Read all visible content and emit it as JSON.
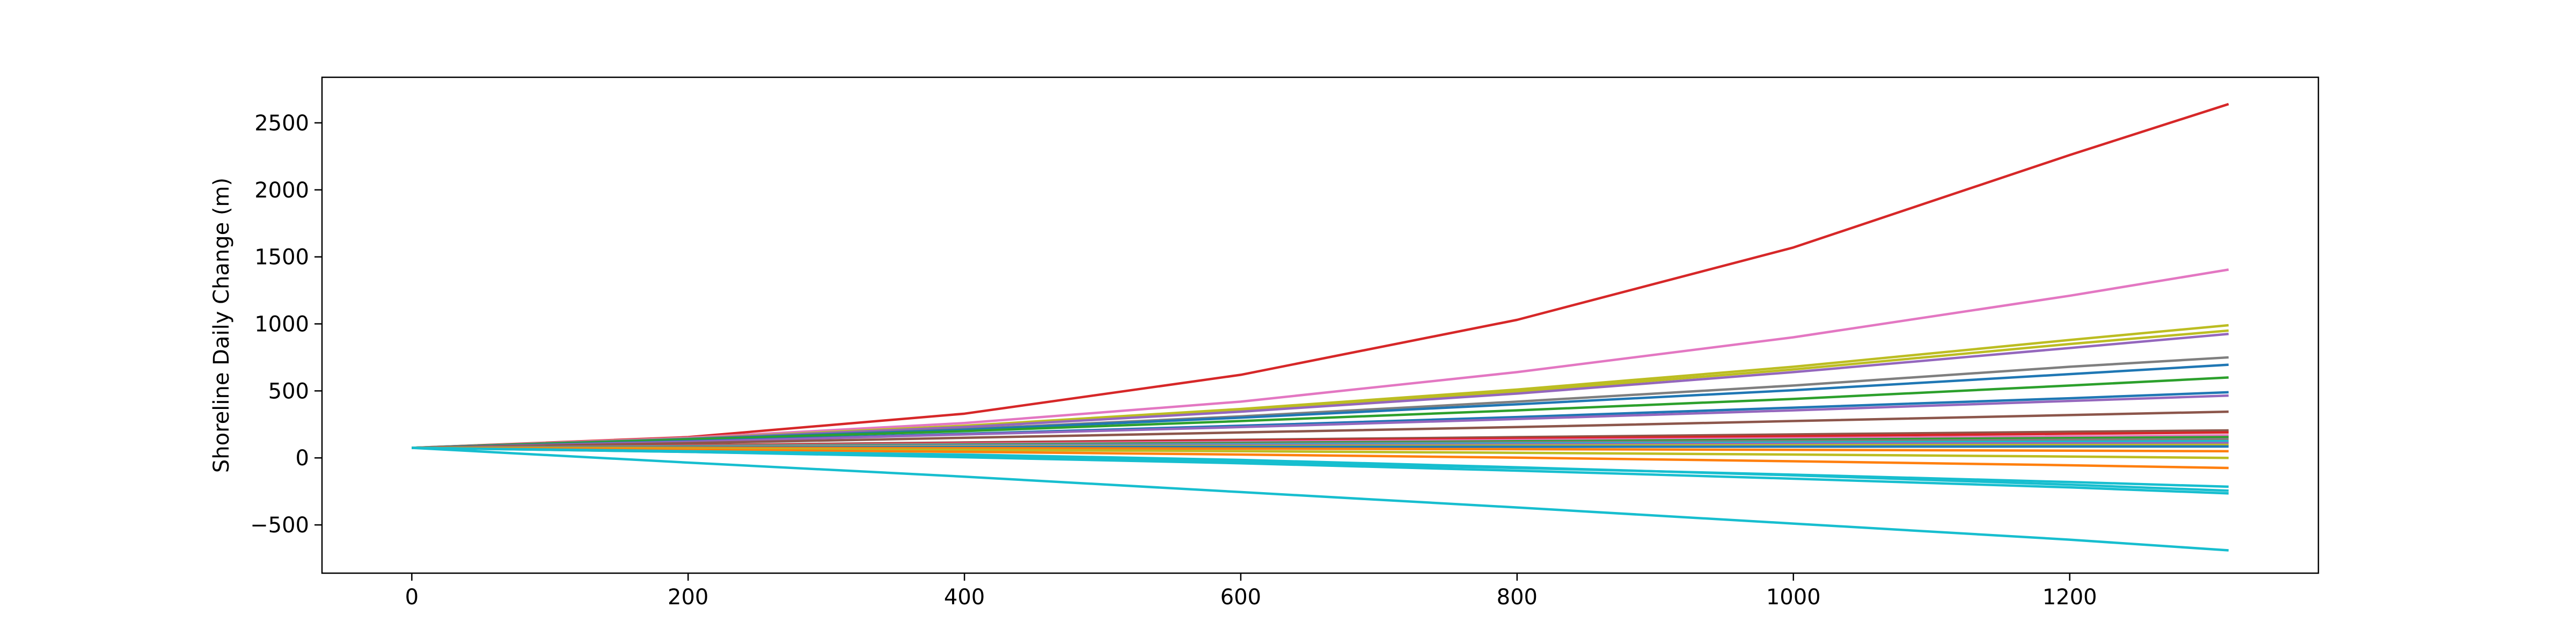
{
  "chart_data": {
    "type": "line",
    "title": "",
    "xlabel": "",
    "ylabel": "Shoreline Daily Change (m)",
    "xlim": [
      -65,
      1380
    ],
    "ylim": [
      -860,
      2840
    ],
    "xticks": [
      0,
      200,
      400,
      600,
      800,
      1000,
      1200
    ],
    "yticks": [
      -500,
      0,
      500,
      1000,
      1500,
      2000,
      2500
    ],
    "xtick_labels": [
      "0",
      "200",
      "400",
      "600",
      "800",
      "1000",
      "1200"
    ],
    "ytick_labels": [
      "−500",
      "0",
      "500",
      "1000",
      "1500",
      "2000",
      "2500"
    ],
    "grid": false,
    "legend": "none",
    "series": [
      {
        "color": "#d62728",
        "x": [
          0,
          200,
          400,
          600,
          800,
          1000,
          1200,
          1315
        ],
        "values": [
          75,
          155,
          330,
          620,
          1030,
          1570,
          2260,
          2640
        ]
      },
      {
        "color": "#e377c2",
        "x": [
          0,
          200,
          400,
          600,
          800,
          1000,
          1200,
          1315
        ],
        "values": [
          75,
          150,
          260,
          420,
          640,
          900,
          1210,
          1405
        ]
      },
      {
        "color": "#bcbd22",
        "x": [
          0,
          200,
          400,
          600,
          800,
          1000,
          1200,
          1315
        ],
        "values": [
          75,
          145,
          240,
          365,
          510,
          680,
          880,
          990
        ]
      },
      {
        "color": "#bcbd22",
        "x": [
          0,
          200,
          400,
          600,
          800,
          1000,
          1200,
          1315
        ],
        "values": [
          75,
          145,
          235,
          355,
          495,
          660,
          850,
          950
        ]
      },
      {
        "color": "#9467bd",
        "x": [
          0,
          200,
          400,
          600,
          800,
          1000,
          1200,
          1315
        ],
        "values": [
          75,
          143,
          230,
          345,
          480,
          640,
          820,
          925
        ]
      },
      {
        "color": "#7f7f7f",
        "x": [
          0,
          200,
          400,
          600,
          800,
          1000,
          1200,
          1315
        ],
        "values": [
          75,
          140,
          215,
          310,
          420,
          540,
          680,
          750
        ]
      },
      {
        "color": "#1f77b4",
        "x": [
          0,
          200,
          400,
          600,
          800,
          1000,
          1200,
          1315
        ],
        "values": [
          75,
          140,
          210,
          300,
          400,
          505,
          625,
          695
        ]
      },
      {
        "color": "#2ca02c",
        "x": [
          0,
          200,
          400,
          600,
          800,
          1000,
          1200,
          1315
        ],
        "values": [
          75,
          138,
          200,
          275,
          355,
          440,
          540,
          600
        ]
      },
      {
        "color": "#1f77b4",
        "x": [
          0,
          200,
          400,
          600,
          800,
          1000,
          1200,
          1315
        ],
        "values": [
          75,
          125,
          180,
          240,
          305,
          375,
          445,
          490
        ]
      },
      {
        "color": "#9467bd",
        "x": [
          0,
          200,
          400,
          600,
          800,
          1000,
          1200,
          1315
        ],
        "values": [
          75,
          120,
          175,
          230,
          290,
          355,
          425,
          465
        ]
      },
      {
        "color": "#8c564b",
        "x": [
          0,
          200,
          400,
          600,
          800,
          1000,
          1200,
          1315
        ],
        "values": [
          75,
          110,
          150,
          190,
          230,
          275,
          320,
          345
        ]
      },
      {
        "color": "#8c564b",
        "x": [
          0,
          200,
          400,
          600,
          800,
          1000,
          1200,
          1315
        ],
        "values": [
          75,
          95,
          115,
          135,
          155,
          175,
          195,
          205
        ]
      },
      {
        "color": "#d62728",
        "x": [
          0,
          200,
          400,
          600,
          800,
          1000,
          1200,
          1315
        ],
        "values": [
          75,
          93,
          110,
          128,
          145,
          162,
          180,
          190
        ]
      },
      {
        "color": "#e377c2",
        "x": [
          0,
          200,
          400,
          600,
          800,
          1000,
          1200,
          1315
        ],
        "values": [
          75,
          90,
          105,
          120,
          133,
          146,
          160,
          168
        ]
      },
      {
        "color": "#2ca02c",
        "x": [
          0,
          200,
          400,
          600,
          800,
          1000,
          1200,
          1315
        ],
        "values": [
          75,
          88,
          100,
          112,
          124,
          136,
          148,
          155
        ]
      },
      {
        "color": "#7f7f7f",
        "x": [
          0,
          200,
          400,
          600,
          800,
          1000,
          1200,
          1315
        ],
        "values": [
          75,
          86,
          96,
          106,
          116,
          126,
          135,
          140
        ]
      },
      {
        "color": "#17becf",
        "x": [
          0,
          200,
          400,
          600,
          800,
          1000,
          1200,
          1315
        ],
        "values": [
          75,
          84,
          92,
          100,
          107,
          114,
          120,
          124
        ]
      },
      {
        "color": "#9467bd",
        "x": [
          0,
          200,
          400,
          600,
          800,
          1000,
          1200,
          1315
        ],
        "values": [
          75,
          82,
          89,
          95,
          100,
          105,
          109,
          111
        ]
      },
      {
        "color": "#bcbd22",
        "x": [
          0,
          200,
          400,
          600,
          800,
          1000,
          1200,
          1315
        ],
        "values": [
          75,
          80,
          84,
          88,
          91,
          94,
          96,
          97
        ]
      },
      {
        "color": "#1f77b4",
        "x": [
          0,
          200,
          400,
          600,
          800,
          1000,
          1200,
          1315
        ],
        "values": [
          75,
          78,
          80,
          82,
          83,
          84,
          85,
          85
        ]
      },
      {
        "color": "#ff7f0e",
        "x": [
          0,
          200,
          400,
          600,
          800,
          1000,
          1200,
          1315
        ],
        "values": [
          75,
          74,
          72,
          69,
          65,
          60,
          54,
          50
        ]
      },
      {
        "color": "#bcbd22",
        "x": [
          0,
          200,
          400,
          600,
          800,
          1000,
          1200,
          1315
        ],
        "values": [
          75,
          68,
          60,
          50,
          38,
          25,
          10,
          0
        ]
      },
      {
        "color": "#ff7f0e",
        "x": [
          0,
          200,
          400,
          600,
          800,
          1000,
          1200,
          1315
        ],
        "values": [
          75,
          62,
          45,
          25,
          2,
          -25,
          -55,
          -75
        ]
      },
      {
        "color": "#17becf",
        "x": [
          0,
          200,
          400,
          600,
          800,
          1000,
          1200,
          1315
        ],
        "values": [
          75,
          45,
          10,
          -30,
          -75,
          -125,
          -180,
          -215
        ]
      },
      {
        "color": "#17becf",
        "x": [
          0,
          200,
          400,
          600,
          800,
          1000,
          1200,
          1315
        ],
        "values": [
          75,
          50,
          25,
          -15,
          -70,
          -130,
          -200,
          -245
        ]
      },
      {
        "color": "#17becf",
        "x": [
          0,
          200,
          400,
          600,
          800,
          1000,
          1200,
          1315
        ],
        "values": [
          75,
          45,
          5,
          -40,
          -95,
          -155,
          -220,
          -265
        ]
      },
      {
        "color": "#17becf",
        "x": [
          0,
          200,
          400,
          600,
          800,
          1000,
          1200,
          1315
        ],
        "values": [
          75,
          -35,
          -140,
          -255,
          -370,
          -490,
          -610,
          -690
        ]
      }
    ]
  }
}
